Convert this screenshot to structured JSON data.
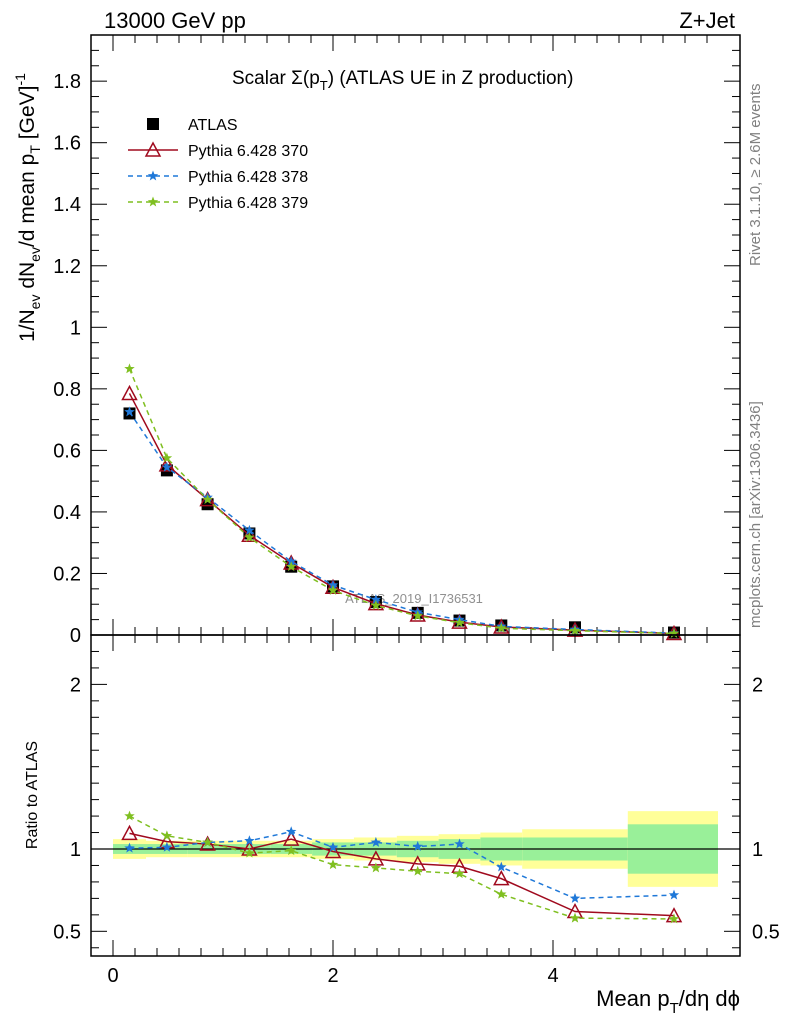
{
  "header": {
    "left": "13000 GeV pp",
    "right": "Z+Jet"
  },
  "side": {
    "rivet": "Rivet 3.1.10, ≥ 2.6M events",
    "mcplots": "mcplots.cern.ch [arXiv:1306.3436]"
  },
  "chart_data": {
    "type": "line",
    "title_prefix": "Scalar Σ(p",
    "title_sub": "T",
    "title_suffix": ") (ATLAS UE in Z production)",
    "ylabel": {
      "a": "1/N",
      "a_sub": "ev",
      "b": " dN",
      "b_sub": "ev",
      "c": "/d mean p",
      "c_sub": "T",
      "d": " [GeV]",
      "d_sup": "-1"
    },
    "xlabel": {
      "a": "Mean p",
      "a_sub": "T",
      "b": "/dη dϕ"
    },
    "ratio_ylabel": "Ratio to ATLAS",
    "watermark": "ATLAS_2019_I1736531",
    "xlim": [
      -0.2,
      5.7
    ],
    "ylim_main": [
      0,
      1.95
    ],
    "ylim_ratio": [
      0.35,
      2.3
    ],
    "x_ticks": [
      "0",
      "2",
      "4"
    ],
    "y_ticks_main": [
      "0",
      "0.2",
      "0.4",
      "0.6",
      "0.8",
      "1",
      "1.2",
      "1.4",
      "1.6",
      "1.8"
    ],
    "y_ticks_ratio": [
      "0.5",
      "1",
      "2"
    ],
    "x": [
      0.15,
      0.49,
      0.86,
      1.24,
      1.62,
      2.0,
      2.39,
      2.77,
      3.15,
      3.53,
      4.2,
      5.1
    ],
    "bin_edges": [
      0,
      0.3,
      0.68,
      1.05,
      1.43,
      1.81,
      2.19,
      2.58,
      2.96,
      3.34,
      3.72,
      4.68,
      5.5
    ],
    "band_yellow_halfwidth": [
      0.06,
      0.05,
      0.05,
      0.05,
      0.05,
      0.06,
      0.07,
      0.08,
      0.09,
      0.1,
      0.12,
      0.23
    ],
    "band_green_halfwidth": [
      0.03,
      0.03,
      0.03,
      0.03,
      0.03,
      0.04,
      0.04,
      0.05,
      0.06,
      0.07,
      0.07,
      0.15
    ],
    "series": [
      {
        "name": "ATLAS",
        "color": "#000000",
        "marker": "square",
        "values": [
          0.72,
          0.535,
          0.425,
          0.33,
          0.222,
          0.158,
          0.107,
          0.072,
          0.047,
          0.031,
          0.025,
          0.008
        ]
      },
      {
        "name": "Pythia 6.428 370",
        "color": "#a00a1e",
        "marker": "triangle",
        "dash": "",
        "values": [
          0.785,
          0.553,
          0.44,
          0.324,
          0.234,
          0.155,
          0.102,
          0.065,
          0.042,
          0.026,
          0.016,
          0.005
        ],
        "ratio": [
          1.095,
          1.045,
          1.03,
          1.0,
          1.06,
          0.985,
          0.94,
          0.91,
          0.895,
          0.82,
          0.62,
          0.595
        ]
      },
      {
        "name": "Pythia 6.428 378",
        "color": "#1f78d8",
        "marker": "star",
        "dash": "5,4",
        "values": [
          0.725,
          0.545,
          0.447,
          0.34,
          0.239,
          0.162,
          0.115,
          0.074,
          0.05,
          0.028,
          0.018,
          0.006
        ],
        "ratio": [
          1.005,
          1.01,
          1.04,
          1.05,
          1.105,
          1.01,
          1.04,
          1.015,
          1.03,
          0.89,
          0.7,
          0.72
        ]
      },
      {
        "name": "Pythia 6.428 379",
        "color": "#7fbf20",
        "marker": "star",
        "dash": "5,4",
        "values": [
          0.865,
          0.575,
          0.44,
          0.317,
          0.222,
          0.145,
          0.096,
          0.062,
          0.04,
          0.022,
          0.014,
          0.005
        ],
        "ratio": [
          1.2,
          1.08,
          1.04,
          0.975,
          0.99,
          0.905,
          0.885,
          0.865,
          0.85,
          0.725,
          0.58,
          0.575
        ]
      }
    ]
  }
}
